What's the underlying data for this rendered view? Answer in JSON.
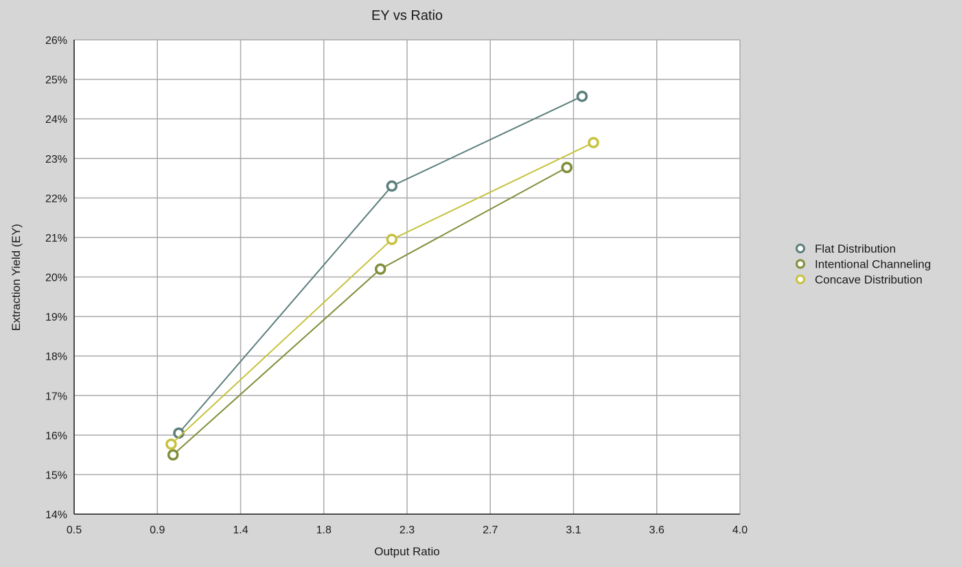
{
  "chart_data": {
    "type": "line",
    "title": "EY vs Ratio",
    "xlabel": "Output Ratio",
    "ylabel": "Extraction Yield (EY)",
    "xlim": [
      0.5,
      4.0
    ],
    "ylim": [
      14,
      26
    ],
    "x_ticks": [
      "0.5",
      "0.9",
      "1.4",
      "1.8",
      "2.3",
      "2.7",
      "3.1",
      "3.6",
      "4.0"
    ],
    "y_ticks": [
      "14%",
      "15%",
      "16%",
      "17%",
      "18%",
      "19%",
      "20%",
      "21%",
      "22%",
      "23%",
      "24%",
      "25%",
      "26%"
    ],
    "grid": true,
    "legend_position": "right",
    "series": [
      {
        "name": "Flat Distribution",
        "color": "#5b7f7c",
        "points": [
          {
            "x": 1.05,
            "y": 16.05
          },
          {
            "x": 2.17,
            "y": 22.3
          },
          {
            "x": 3.17,
            "y": 24.57
          }
        ]
      },
      {
        "name": "Intentional Channeling",
        "color": "#7e8f3a",
        "points": [
          {
            "x": 1.02,
            "y": 15.5
          },
          {
            "x": 2.11,
            "y": 20.2
          },
          {
            "x": 3.09,
            "y": 22.77
          }
        ]
      },
      {
        "name": "Concave Distribution",
        "color": "#c7c23e",
        "points": [
          {
            "x": 1.01,
            "y": 15.77
          },
          {
            "x": 2.17,
            "y": 20.95
          },
          {
            "x": 3.23,
            "y": 23.4
          }
        ]
      }
    ]
  }
}
